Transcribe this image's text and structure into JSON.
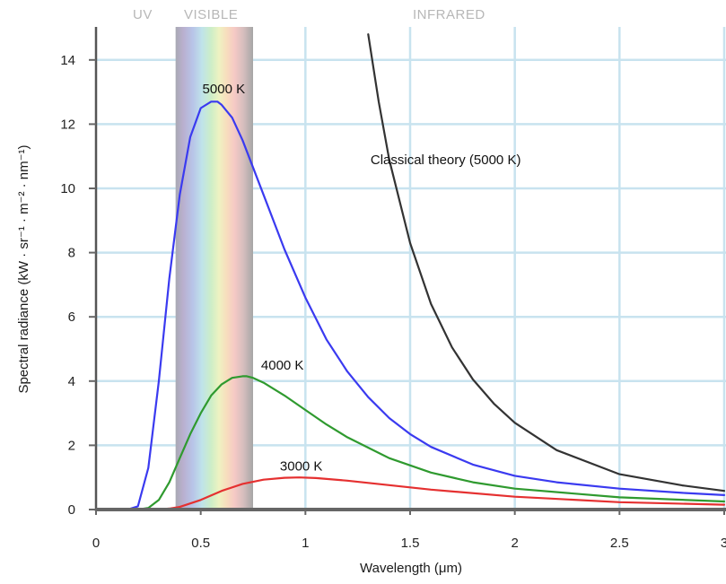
{
  "chart_data": {
    "type": "line",
    "xlabel": "Wavelength (μm)",
    "ylabel": "Spectral radiance (kW · sr⁻¹ · m⁻² · nm⁻¹)",
    "xlim": [
      0,
      3
    ],
    "ylim": [
      0,
      15
    ],
    "x_ticks": [
      0,
      0.5,
      1,
      1.5,
      2,
      2.5,
      3
    ],
    "x_tick_labels": [
      "0",
      "0.5",
      "1",
      "1.5",
      "2",
      "2.5",
      "3"
    ],
    "y_ticks": [
      0,
      2,
      4,
      6,
      8,
      10,
      12,
      14
    ],
    "y_tick_labels": [
      "0",
      "2",
      "4",
      "6",
      "8",
      "10",
      "12",
      "14"
    ],
    "grid": true,
    "bands": [
      {
        "label": "UV",
        "x_range": [
          0,
          0.38
        ]
      },
      {
        "label": "VISIBLE",
        "x_range": [
          0.38,
          0.75
        ]
      },
      {
        "label": "INFRARED",
        "x_range": [
          0.75,
          3
        ]
      }
    ],
    "series": [
      {
        "name": "5000 K",
        "color": "#3a3af0",
        "x": [
          0.1,
          0.15,
          0.2,
          0.25,
          0.3,
          0.35,
          0.4,
          0.45,
          0.5,
          0.55,
          0.58,
          0.6,
          0.65,
          0.7,
          0.8,
          0.9,
          1.0,
          1.1,
          1.2,
          1.3,
          1.4,
          1.5,
          1.6,
          1.8,
          2.0,
          2.2,
          2.5,
          2.8,
          3.0
        ],
        "y": [
          0,
          0,
          0.1,
          1.3,
          4.0,
          7.2,
          9.8,
          11.6,
          12.5,
          12.7,
          12.7,
          12.6,
          12.2,
          11.5,
          9.8,
          8.1,
          6.6,
          5.3,
          4.3,
          3.5,
          2.85,
          2.35,
          1.95,
          1.4,
          1.05,
          0.85,
          0.65,
          0.52,
          0.45
        ]
      },
      {
        "name": "4000 K",
        "color": "#2f9a2f",
        "x": [
          0.1,
          0.2,
          0.25,
          0.3,
          0.35,
          0.4,
          0.45,
          0.5,
          0.55,
          0.6,
          0.65,
          0.7,
          0.72,
          0.75,
          0.8,
          0.9,
          1.0,
          1.1,
          1.2,
          1.4,
          1.6,
          1.8,
          2.0,
          2.5,
          3.0
        ],
        "y": [
          0,
          0,
          0.05,
          0.3,
          0.85,
          1.6,
          2.35,
          3.0,
          3.55,
          3.9,
          4.1,
          4.15,
          4.15,
          4.1,
          3.95,
          3.55,
          3.1,
          2.65,
          2.25,
          1.6,
          1.15,
          0.85,
          0.65,
          0.38,
          0.25
        ]
      },
      {
        "name": "3000 K",
        "color": "#e53030",
        "x": [
          0.1,
          0.3,
          0.35,
          0.4,
          0.5,
          0.6,
          0.7,
          0.8,
          0.9,
          0.97,
          1.05,
          1.2,
          1.4,
          1.6,
          2.0,
          2.5,
          3.0
        ],
        "y": [
          0,
          0,
          0.03,
          0.08,
          0.3,
          0.58,
          0.8,
          0.93,
          0.99,
          1.0,
          0.98,
          0.9,
          0.76,
          0.62,
          0.4,
          0.23,
          0.15
        ]
      },
      {
        "name": "Classical theory (5000 K)",
        "color": "#333333",
        "x": [
          1.3,
          1.35,
          1.4,
          1.5,
          1.6,
          1.7,
          1.8,
          1.9,
          2.0,
          2.2,
          2.5,
          2.8,
          3.0
        ],
        "y": [
          14.8,
          12.7,
          10.9,
          8.3,
          6.4,
          5.05,
          4.05,
          3.3,
          2.7,
          1.85,
          1.1,
          0.75,
          0.58
        ]
      }
    ],
    "annotations": [
      {
        "text": "5000 K",
        "x": 0.61,
        "y": 13.1
      },
      {
        "text": "4000 K",
        "x": 0.89,
        "y": 4.5
      },
      {
        "text": "3000 K",
        "x": 0.98,
        "y": 1.35
      },
      {
        "text": "Classical theory (5000 K)",
        "x": 1.67,
        "y": 10.9
      }
    ]
  }
}
